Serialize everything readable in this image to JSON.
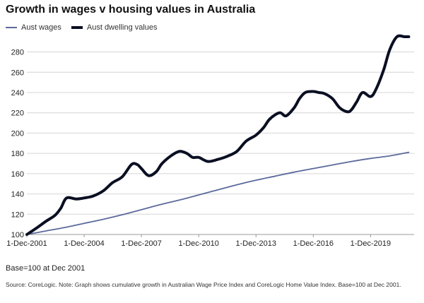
{
  "chart_data": {
    "type": "line",
    "title": "Growth in wages v housing values in Australia",
    "xlabel": "",
    "ylabel": "",
    "ylim": [
      100,
      295
    ],
    "yticks": [
      100,
      120,
      140,
      160,
      180,
      200,
      220,
      240,
      260,
      280
    ],
    "x_tick_labels": [
      "1-Dec-2001",
      "1-Dec-2004",
      "1-Dec-2007",
      "1-Dec-2010",
      "1-Dec-2013",
      "1-Dec-2016",
      "1-Dec-2019"
    ],
    "x_tick_years": [
      2001.92,
      2004.92,
      2007.92,
      2010.92,
      2013.92,
      2016.92,
      2019.92
    ],
    "xlim": [
      2001.92,
      2022.2
    ],
    "grid": true,
    "legend_position": "top-left",
    "series": [
      {
        "name": "Aust wages",
        "color": "#5b6a9c",
        "x": [
          2001.92,
          2002.92,
          2003.92,
          2004.92,
          2005.92,
          2006.92,
          2007.92,
          2008.92,
          2009.92,
          2010.92,
          2011.92,
          2012.92,
          2013.92,
          2014.92,
          2015.92,
          2016.92,
          2017.92,
          2018.92,
          2019.92,
          2020.92,
          2021.92
        ],
        "values": [
          100,
          103.5,
          107,
          111,
          115,
          119.5,
          124.5,
          129.5,
          134,
          139,
          144,
          149,
          153.5,
          157.5,
          161.5,
          165,
          168.5,
          172,
          175,
          177.5,
          181
        ]
      },
      {
        "name": "Aust dwelling values",
        "color": "#0a0f22",
        "x": [
          2001.92,
          2002.4,
          2002.92,
          2003.4,
          2003.7,
          2004.0,
          2004.5,
          2004.92,
          2005.4,
          2005.92,
          2006.4,
          2006.92,
          2007.4,
          2007.7,
          2007.92,
          2008.3,
          2008.7,
          2009.0,
          2009.5,
          2009.92,
          2010.3,
          2010.6,
          2010.92,
          2011.4,
          2011.92,
          2012.4,
          2012.92,
          2013.4,
          2013.92,
          2014.3,
          2014.6,
          2014.92,
          2015.2,
          2015.5,
          2015.92,
          2016.2,
          2016.5,
          2016.92,
          2017.2,
          2017.5,
          2017.92,
          2018.3,
          2018.7,
          2018.92,
          2019.2,
          2019.5,
          2019.92,
          2020.2,
          2020.6,
          2020.92,
          2021.3,
          2021.7,
          2021.92
        ],
        "values": [
          100,
          106,
          113,
          119,
          126,
          136,
          135,
          136,
          138,
          143,
          151,
          157,
          169,
          169,
          165,
          158,
          162,
          170,
          178,
          182,
          180,
          176,
          176,
          172,
          174,
          177,
          182,
          192,
          198,
          205,
          213,
          218,
          220,
          217,
          225,
          234,
          240,
          241,
          240,
          239,
          234,
          225,
          221,
          223,
          231,
          240,
          236,
          243,
          262,
          282,
          295,
          295,
          295
        ]
      }
    ]
  },
  "legend": {
    "wages_label": "Aust wages",
    "dwelling_label": "Aust dwelling values"
  },
  "notes": {
    "base": "Base=100 at Dec 2001",
    "source": "Source: CoreLogic. Note: Graph shows cumulative growth in Australian Wage Price Index and CoreLogic Home Value Index. Base=100 at Dec 2001."
  }
}
